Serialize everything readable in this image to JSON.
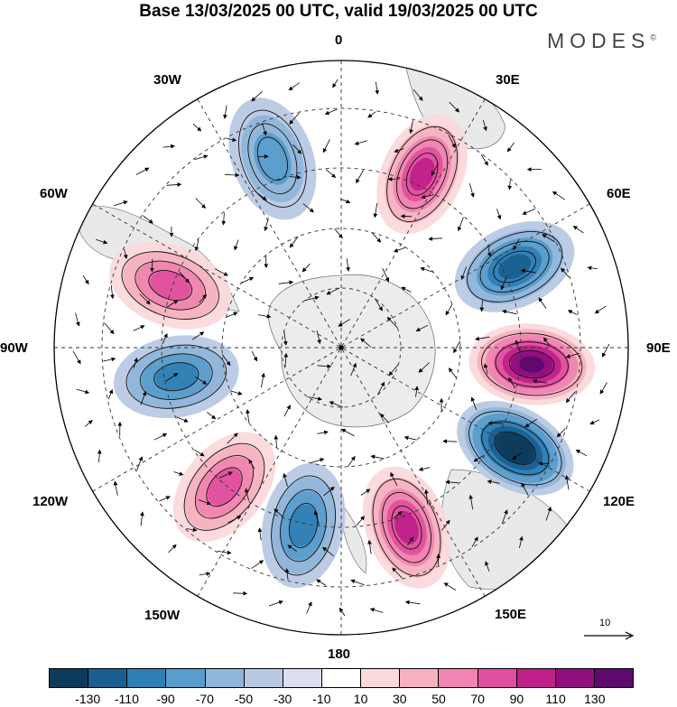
{
  "title": "Base 13/03/2025 00 UTC, valid 19/03/2025 00 UTC",
  "brand": "MODES",
  "brand_mark": "©",
  "longitude_labels": {
    "lon_0": "0",
    "lon_30e": "30E",
    "lon_60e": "60E",
    "lon_90e": "90E",
    "lon_120e": "120E",
    "lon_150e": "150E",
    "lon_180": "180",
    "lon_150w": "150W",
    "lon_120w": "120W",
    "lon_90w": "90W",
    "lon_60w": "60W",
    "lon_30w": "30W"
  },
  "reference_vector": {
    "label": "10"
  },
  "colorbar": {
    "colors": [
      "#0d3b5c",
      "#1a5f8f",
      "#2f7fb5",
      "#5a9ccb",
      "#8fb5d9",
      "#b9c9e4",
      "#dddff0",
      "#ffffff",
      "#fbd9dc",
      "#f6b2bf",
      "#ef85b0",
      "#e0509e",
      "#c0208a",
      "#8f0f7e",
      "#5e0a6e"
    ],
    "tick_labels": [
      "-130",
      "-110",
      "-90",
      "-70",
      "-50",
      "-30",
      "-10",
      "10",
      "30",
      "50",
      "70",
      "90",
      "110",
      "130"
    ]
  },
  "anomaly_centers": [
    {
      "name": "positive-30e",
      "lon": 25,
      "lat": -50,
      "value": 90
    },
    {
      "name": "negative-60e",
      "lon": 65,
      "lat": -50,
      "value": -90
    },
    {
      "name": "positive-90e",
      "lon": 95,
      "lat": -50,
      "value": 130
    },
    {
      "name": "negative-120e",
      "lon": 120,
      "lat": -48,
      "value": -130
    },
    {
      "name": "positive-160e",
      "lon": 160,
      "lat": -50,
      "value": 90
    },
    {
      "name": "negative-170w",
      "lon": -168,
      "lat": -52,
      "value": -70
    },
    {
      "name": "positive-150w",
      "lon": -140,
      "lat": -52,
      "value": 70
    },
    {
      "name": "negative-100w",
      "lon": -100,
      "lat": -55,
      "value": -70
    },
    {
      "name": "positive-70w",
      "lon": -70,
      "lat": -52,
      "value": 70
    },
    {
      "name": "negative-20w",
      "lon": -20,
      "lat": -48,
      "value": -50
    }
  ]
}
